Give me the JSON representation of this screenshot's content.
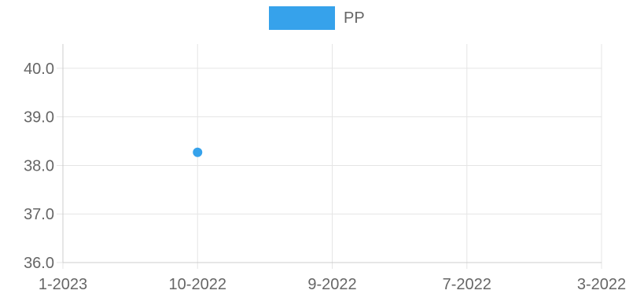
{
  "chart_data": {
    "type": "scatter",
    "categories": [
      "1-2023",
      "10-2022",
      "9-2022",
      "7-2022",
      "3-2022"
    ],
    "series": [
      {
        "name": "PP",
        "color": "#36a2eb",
        "points": [
          {
            "x": "10-2022",
            "y": 38.27
          }
        ]
      }
    ],
    "yticks": [
      "36.0",
      "37.0",
      "38.0",
      "39.0",
      "40.0"
    ],
    "ylim": [
      36.0,
      40.5
    ],
    "grid": true,
    "legend_position": "top"
  }
}
